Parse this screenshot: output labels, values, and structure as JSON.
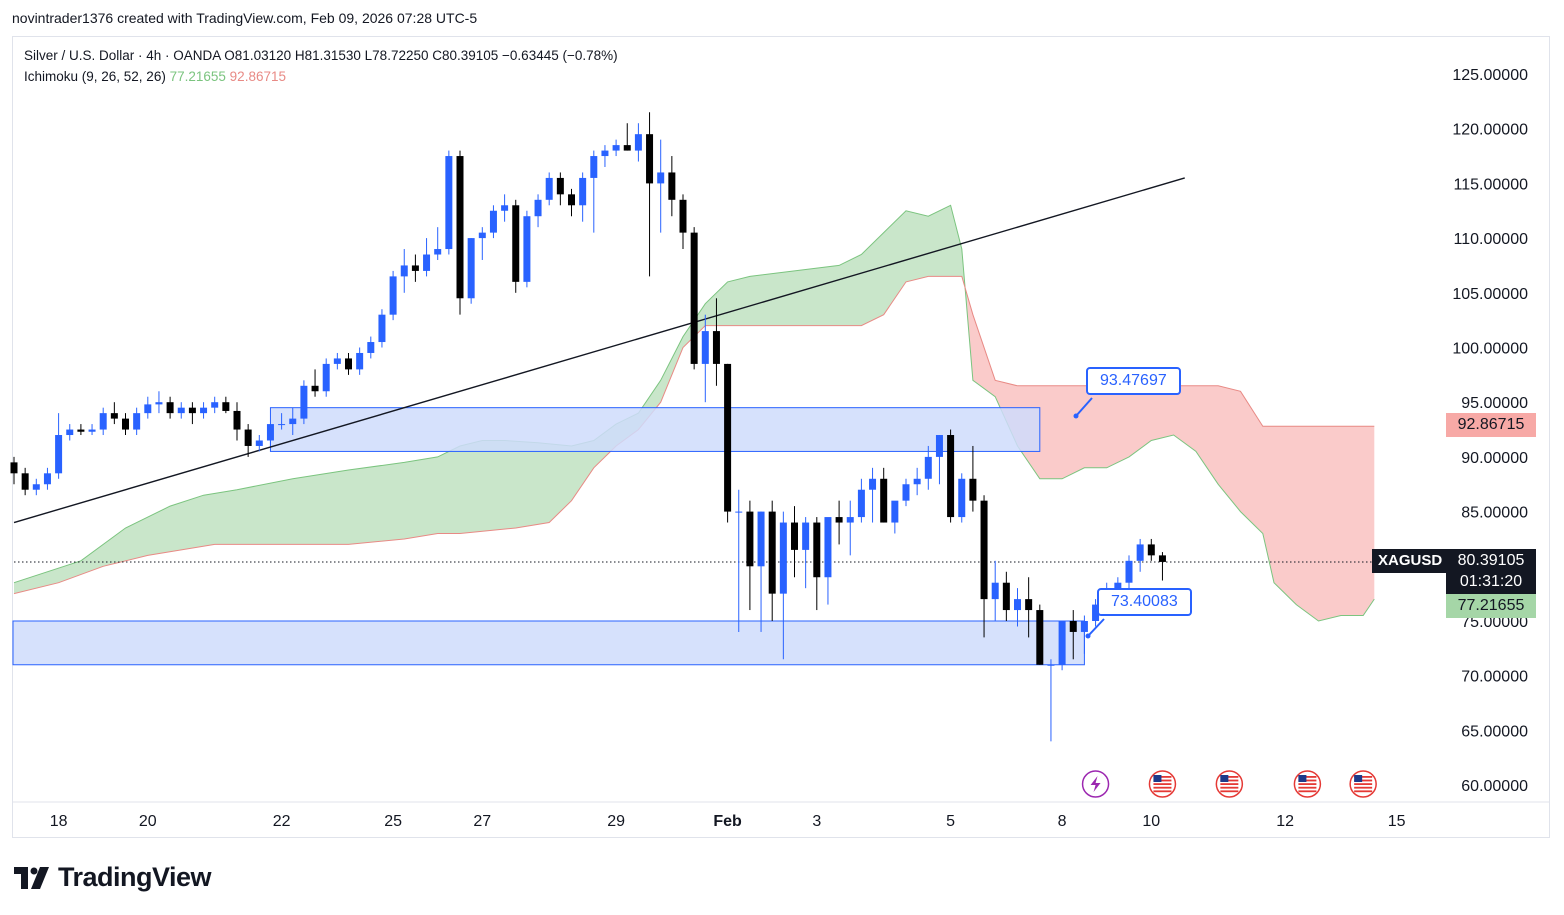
{
  "header": {
    "attribution": "novintrader1376 created with TradingView.com, Feb 09, 2026 07:28 UTC-5"
  },
  "legend": {
    "symbol_line": "Silver / U.S. Dollar · 4h · OANDA  O81.03120  H81.31530  L78.72250  C80.39105  −0.63445 (−0.78%)",
    "indicator_name": "Ichimoku (9, 26, 52, 26)",
    "indicator_value_1": "77.21655",
    "indicator_value_2": "92.86715"
  },
  "labels": {
    "symbol_tag": "XAGUSD",
    "last_price": "80.39105",
    "countdown": "01:31:20",
    "span_a_tag": "77.21655",
    "span_b_tag": "92.86715",
    "callout_upper": "93.47697",
    "callout_lower": "73.40083"
  },
  "brand": {
    "name": "TradingView"
  },
  "colors": {
    "up": "#2962ff",
    "down": "#000000",
    "cloud_bull": "#a5d6a7",
    "cloud_bear": "#f7a9a6",
    "zone_fill": "#cfdcfb",
    "zone_border": "#2962ff"
  },
  "chart_data": {
    "type": "candlestick",
    "title": "Silver / U.S. Dollar · 4h · OANDA",
    "ylim": [
      58.5,
      128
    ],
    "y_ticks": [
      125,
      120,
      115,
      110,
      105,
      100,
      95,
      90,
      85,
      75,
      70,
      65,
      60
    ],
    "y_tick_labels": [
      "125.00000",
      "120.00000",
      "115.00000",
      "110.00000",
      "105.00000",
      "100.00000",
      "95.00000",
      "90.00000",
      "85.00000",
      "75.00000",
      "70.00000",
      "65.00000",
      "60.00000"
    ],
    "x_ticks": [
      {
        "label": "18",
        "i": 4
      },
      {
        "label": "20",
        "i": 12
      },
      {
        "label": "22",
        "i": 24
      },
      {
        "label": "25",
        "i": 34
      },
      {
        "label": "27",
        "i": 42
      },
      {
        "label": "29",
        "i": 54
      },
      {
        "label": "Feb",
        "i": 64
      },
      {
        "label": "3",
        "i": 72
      },
      {
        "label": "5",
        "i": 84
      },
      {
        "label": "8",
        "i": 94
      },
      {
        "label": "10",
        "i": 102
      },
      {
        "label": "12",
        "i": 114
      },
      {
        "label": "15",
        "i": 124
      }
    ],
    "candles": [
      [
        89.5,
        90.0,
        87.5,
        88.5
      ],
      [
        88.5,
        89.0,
        86.5,
        87.0
      ],
      [
        87.0,
        88.0,
        86.5,
        87.5
      ],
      [
        87.5,
        89.0,
        87.0,
        88.5
      ],
      [
        88.5,
        94.0,
        88.0,
        92.0
      ],
      [
        92.0,
        93.0,
        91.5,
        92.5
      ],
      [
        92.5,
        93.0,
        92.0,
        92.3
      ],
      [
        92.3,
        93.0,
        92.0,
        92.5
      ],
      [
        92.5,
        94.5,
        92.0,
        94.0
      ],
      [
        94.0,
        95.0,
        93.0,
        93.5
      ],
      [
        93.5,
        94.0,
        92.0,
        92.5
      ],
      [
        92.5,
        94.5,
        92.0,
        94.0
      ],
      [
        94.0,
        95.5,
        93.5,
        94.8
      ],
      [
        94.8,
        96.0,
        94.0,
        95.0
      ],
      [
        95.0,
        95.5,
        93.5,
        94.0
      ],
      [
        94.0,
        95.0,
        93.5,
        94.5
      ],
      [
        94.5,
        95.0,
        93.0,
        94.0
      ],
      [
        94.0,
        95.0,
        93.5,
        94.5
      ],
      [
        94.5,
        95.5,
        94.0,
        95.0
      ],
      [
        95.0,
        95.5,
        94.0,
        94.2
      ],
      [
        94.2,
        95.0,
        91.5,
        92.5
      ],
      [
        92.5,
        93.0,
        90.0,
        91.0
      ],
      [
        91.0,
        92.0,
        90.5,
        91.5
      ],
      [
        91.5,
        93.0,
        91.0,
        93.0
      ],
      [
        93.0,
        94.0,
        92.5,
        93.0
      ],
      [
        93.0,
        94.5,
        92.0,
        93.5
      ],
      [
        93.5,
        97.0,
        93.0,
        96.5
      ],
      [
        96.5,
        98.0,
        95.5,
        96.0
      ],
      [
        96.0,
        99.0,
        95.5,
        98.5
      ],
      [
        98.5,
        99.5,
        98.0,
        99.0
      ],
      [
        99.0,
        99.5,
        97.5,
        98.0
      ],
      [
        98.0,
        100.0,
        97.5,
        99.5
      ],
      [
        99.5,
        101.0,
        99.0,
        100.5
      ],
      [
        100.5,
        103.5,
        100.0,
        103.0
      ],
      [
        103.0,
        107.0,
        102.5,
        106.5
      ],
      [
        106.5,
        109.0,
        105.0,
        107.5
      ],
      [
        107.5,
        108.5,
        106.0,
        107.0
      ],
      [
        107.0,
        110.0,
        106.5,
        108.5
      ],
      [
        108.5,
        111.0,
        108.0,
        109.0
      ],
      [
        109.0,
        118.0,
        108.5,
        117.5
      ],
      [
        117.5,
        118.0,
        103.0,
        104.5
      ],
      [
        104.5,
        110.0,
        104.0,
        110.0
      ],
      [
        110.0,
        111.0,
        108.0,
        110.5
      ],
      [
        110.5,
        113.0,
        110.0,
        112.5
      ],
      [
        112.5,
        114.0,
        111.5,
        113.0
      ],
      [
        113.0,
        113.5,
        105.0,
        106.0
      ],
      [
        106.0,
        112.5,
        105.5,
        112.0
      ],
      [
        112.0,
        114.0,
        111.0,
        113.5
      ],
      [
        113.5,
        116.0,
        113.0,
        115.5
      ],
      [
        115.5,
        116.0,
        113.0,
        114.0
      ],
      [
        114.0,
        114.5,
        112.0,
        113.0
      ],
      [
        113.0,
        116.0,
        111.5,
        115.5
      ],
      [
        115.5,
        118.0,
        110.5,
        117.5
      ],
      [
        117.5,
        118.5,
        116.5,
        118.0
      ],
      [
        118.0,
        119.0,
        117.5,
        118.5
      ],
      [
        118.5,
        120.5,
        118.0,
        118.0
      ],
      [
        118.0,
        120.5,
        117.0,
        119.5
      ],
      [
        119.5,
        121.5,
        106.5,
        115.0
      ],
      [
        115.0,
        119.0,
        110.5,
        116.0
      ],
      [
        116.0,
        117.5,
        112.0,
        113.5
      ],
      [
        113.5,
        114.0,
        109.0,
        110.5
      ],
      [
        110.5,
        111.0,
        98.0,
        98.5
      ],
      [
        98.5,
        103.0,
        95.0,
        101.5
      ],
      [
        101.5,
        104.5,
        96.5,
        98.5
      ],
      [
        98.5,
        98.5,
        84.0,
        85.0
      ],
      [
        85.0,
        87.0,
        74.0,
        85.0
      ],
      [
        85.0,
        86.0,
        76.0,
        80.0
      ],
      [
        80.0,
        85.0,
        74.0,
        85.0
      ],
      [
        85.0,
        86.0,
        75.0,
        77.5
      ],
      [
        77.5,
        85.0,
        71.5,
        84.0
      ],
      [
        84.0,
        85.5,
        79.0,
        81.5
      ],
      [
        81.5,
        84.5,
        78.0,
        84.0
      ],
      [
        84.0,
        84.5,
        76.0,
        79.0
      ],
      [
        79.0,
        84.0,
        76.5,
        84.5
      ],
      [
        84.5,
        86.0,
        82.0,
        84.0
      ],
      [
        84.0,
        86.0,
        81.0,
        84.5
      ],
      [
        84.5,
        88.0,
        84.0,
        87.0
      ],
      [
        87.0,
        89.0,
        84.0,
        88.0
      ],
      [
        88.0,
        89.0,
        84.0,
        84.0
      ],
      [
        84.0,
        85.5,
        83.0,
        86.0
      ],
      [
        86.0,
        88.0,
        85.5,
        87.5
      ],
      [
        87.5,
        89.0,
        86.5,
        88.0
      ],
      [
        88.0,
        91.0,
        87.0,
        90.0
      ],
      [
        90.0,
        92.0,
        87.5,
        92.0
      ],
      [
        92.0,
        92.5,
        84.0,
        84.5
      ],
      [
        84.5,
        88.5,
        84.0,
        88.0
      ],
      [
        88.0,
        91.0,
        85.0,
        86.0
      ],
      [
        86.0,
        86.5,
        73.5,
        77.0
      ],
      [
        77.0,
        80.5,
        75.0,
        78.5
      ],
      [
        78.5,
        79.5,
        75.0,
        76.0
      ],
      [
        76.0,
        78.0,
        74.5,
        77.0
      ],
      [
        77.0,
        79.0,
        73.5,
        76.0
      ],
      [
        76.0,
        76.5,
        71.0,
        71.0
      ],
      [
        71.0,
        71.5,
        64.0,
        71.0
      ],
      [
        71.0,
        75.0,
        70.5,
        75.0
      ],
      [
        75.0,
        76.0,
        71.5,
        74.0
      ],
      [
        74.0,
        75.5,
        72.0,
        75.0
      ],
      [
        75.0,
        77.0,
        74.5,
        76.5
      ],
      [
        76.5,
        78.5,
        76.0,
        78.0
      ],
      [
        78.0,
        79.0,
        77.5,
        78.5
      ],
      [
        78.5,
        81.0,
        78.0,
        80.5
      ],
      [
        80.5,
        82.5,
        79.5,
        82.0
      ],
      [
        82.0,
        82.5,
        80.5,
        81.0
      ],
      [
        81.0,
        81.3,
        78.7,
        80.4
      ]
    ],
    "ichimoku": {
      "params": [
        9,
        26,
        52,
        26
      ],
      "span_a": [
        [
          0,
          78.5
        ],
        [
          6,
          80.5
        ],
        [
          10,
          83.5
        ],
        [
          12,
          84.5
        ],
        [
          14,
          85.5
        ],
        [
          17,
          86.5
        ],
        [
          20,
          87.0
        ],
        [
          25,
          88.0
        ],
        [
          30,
          88.8
        ],
        [
          35,
          89.5
        ],
        [
          38,
          90.0
        ],
        [
          40,
          91.0
        ],
        [
          42,
          91.5
        ],
        [
          44,
          91.5
        ],
        [
          47,
          91.3
        ],
        [
          50,
          91.0
        ],
        [
          52,
          91.5
        ],
        [
          54,
          93.0
        ],
        [
          56,
          94.0
        ],
        [
          58,
          97.0
        ],
        [
          60,
          101.0
        ],
        [
          62,
          104.0
        ],
        [
          64,
          106.0
        ],
        [
          66,
          106.5
        ],
        [
          70,
          107.0
        ],
        [
          74,
          107.5
        ],
        [
          76,
          108.5
        ],
        [
          78,
          110.5
        ],
        [
          80,
          112.5
        ],
        [
          82,
          112.0
        ],
        [
          84,
          113.0
        ],
        [
          85,
          109.0
        ],
        [
          86,
          97.0
        ],
        [
          88,
          95.5
        ],
        [
          90,
          91.0
        ],
        [
          92,
          88.0
        ],
        [
          94,
          88.0
        ],
        [
          96,
          89.0
        ],
        [
          98,
          89.0
        ],
        [
          100,
          90.0
        ],
        [
          102,
          91.5
        ],
        [
          104,
          92.0
        ],
        [
          106,
          90.5
        ],
        [
          108,
          87.5
        ],
        [
          110,
          85.0
        ],
        [
          112,
          83.0
        ],
        [
          113,
          78.5
        ],
        [
          115,
          76.5
        ],
        [
          117,
          75.0
        ],
        [
          119,
          75.5
        ],
        [
          121,
          75.5
        ],
        [
          122,
          77.0
        ]
      ],
      "span_b": [
        [
          0,
          77.5
        ],
        [
          4,
          78.5
        ],
        [
          8,
          80.0
        ],
        [
          12,
          81.0
        ],
        [
          15,
          81.5
        ],
        [
          18,
          82.0
        ],
        [
          25,
          82.0
        ],
        [
          30,
          82.0
        ],
        [
          35,
          82.5
        ],
        [
          38,
          83.0
        ],
        [
          40,
          83.0
        ],
        [
          45,
          83.5
        ],
        [
          48,
          84.0
        ],
        [
          50,
          86.0
        ],
        [
          52,
          89.0
        ],
        [
          54,
          91.0
        ],
        [
          56,
          92.5
        ],
        [
          58,
          95.0
        ],
        [
          60,
          100.0
        ],
        [
          62,
          102.0
        ],
        [
          64,
          102.0
        ],
        [
          70,
          102.0
        ],
        [
          76,
          102.0
        ],
        [
          78,
          103.0
        ],
        [
          80,
          106.0
        ],
        [
          82,
          106.5
        ],
        [
          85,
          106.5
        ],
        [
          86,
          103.0
        ],
        [
          88,
          97.0
        ],
        [
          90,
          96.5
        ],
        [
          100,
          96.5
        ],
        [
          108,
          96.5
        ],
        [
          110,
          96.0
        ],
        [
          112,
          92.8
        ],
        [
          122,
          92.8
        ]
      ]
    },
    "trendline": [
      [
        0,
        84.0
      ],
      [
        105,
        115.5
      ]
    ],
    "zones": [
      {
        "from_i": 23,
        "to_i": 92,
        "top": 94.5,
        "bottom": 90.5
      },
      {
        "from_i": 0,
        "to_i": 96,
        "top": 75.0,
        "bottom": 71.0
      }
    ],
    "last_price": 80.39105,
    "event_icons": [
      {
        "type": "lightning",
        "i": 97
      },
      {
        "type": "us-flag",
        "i": 103
      },
      {
        "type": "us-flag",
        "i": 109
      },
      {
        "type": "us-flag",
        "i": 116
      },
      {
        "type": "us-flag",
        "i": 121
      }
    ]
  }
}
